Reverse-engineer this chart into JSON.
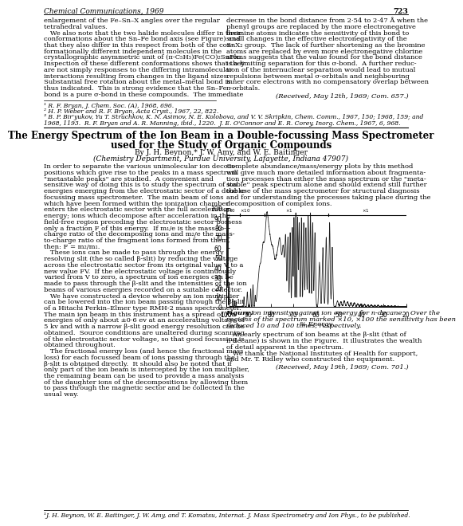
{
  "journal_header": "Chemical Communications, 1969",
  "page_number": "723",
  "prev_article_left": [
    "enlargement of the Fe–Sn–X angles over the regular",
    "tetrahedral values.",
    "   We also note that the two halide molecules differ in their",
    "conformations about the Sn–Fe bond axis (see Figure) and",
    "that they also differ in this respect from both of the con-",
    "formationally different independent molecules in the",
    "crystallographic asymmetric unit of (π-C₅H₅)Fe(CO)₂SnPh₂.",
    "Inspection of these different conformations shows that they",
    "are not simply responses to the differing intramolecular",
    "interactions resulting from changes in the ligand sizes.",
    "Substantial free rotation about the metal–metal bond is",
    "thus indicated.  This is strong evidence that the Sn–Fe",
    "bond is a pure σ-bond in these compounds.  The immediate"
  ],
  "prev_article_right": [
    "decrease in the bond distance from 2·54 to 2·47 Å when the",
    "phenyl groups are replaced by the more electronegative",
    "bromine atoms indicates the sensitivity of this bond to",
    "small changes in the effective electronegativity of the",
    "SnX₂ group.  The lack of further shortening as the bromine",
    "atoms are replaced by even more electronegative chlorine",
    "atoms suggests that the value found for the bond distance",
    "is a limiting separation for this σ-bond.  A further reduc-",
    "tion of the internuclear separation would lead to mutual",
    "repulsions between metal σ-orbitals and neighbouring",
    "inner core electrons with no compensatory overlap between",
    "π-orbitals."
  ],
  "prev_received": "(Received, May 12th, 1969; Com. 657.)",
  "footnotes_prev": [
    "¹ R. F. Bryan, J. Chem. Soc. (A), 1968, 696.",
    "² H. P. Weber and R. F. Bryan, Acta Cryst., 1967, 22, 822.",
    "³ B. P. Bir'yukov, Yu T. Struchkov, K. N. Asimov, N. E. Kolobova, and V. V. Skripkin, Chem. Comm., 1967, 150; 1968, 159; and",
    "1968, 1193.  R. F. Bryan and A. R. Manning, ibid., 1220.  J. E. O'Connor and E. R. Corey, Inorg. Chem., 1967, 6, 968."
  ],
  "title_line1": "The Energy Spectrum of the Ion Beam in a Double-focussing Mass Spectrometer",
  "title_line2": "used for the Study of Organic Compounds",
  "authors": "By J. H. Beynon,* J. W. Amy, and W. E. Baitinger",
  "affiliation": "(Chemistry Department, Purdue University, Lafayette, Indiana 47907)",
  "body_left": [
    "In order to separate the various unimolecular ion decom-",
    "positions which give rise to the peaks in a mass spectrum",
    "\"metastable peaks\" are studied.  A convenient and",
    "sensitive way of doing this is to study the spectrum of ion",
    "energies emerging from the electrostatic sector of a double-",
    "focussing mass spectrometer.  The main beam of ions",
    "which have been formed within the ionization chamber",
    "enters the electrostatic sector with the full acceleration",
    "energy; ions which decompose after acceleration in the",
    "field-free region preceding the electrostatic sector possess",
    "only a fraction F of this energy.  If m₁/e is the mass-to-",
    "charge ratio of the decomposing ions and m₂/e the mass-",
    "to-charge ratio of the fragment ions formed from them,",
    "then: F = m₂/m₁.",
    "   These ions can be made to pass through the energy",
    "resolving slit (the so called β-slit) by reducing the voltage",
    "across the electrostatic sector from its original value V to a",
    "new value FV.  If the electrostatic voltage is continuously",
    "varied from V to zero, a spectrum of ion energies can be",
    "made to pass through the β-slit and the intensities of the ion",
    "beams of various energies recorded on a suitable collector.",
    "   We have constructed a device whereby an ion multiplier",
    "can be lowered into the ion beam passing through the β-slit",
    "of a Hitachi Perkin–Elmer type RMH-2 mass spectrometer.¹",
    "The main ion beam in this instrument has a spread of ion",
    "energies of only about ±0·6 ev at an accelerating voltage of",
    "5 kv and with a narrow β-slit good energy resolution can be",
    "obtained.  Source conditions are unaltered during scanning",
    "of the electrostatic sector voltage, so that good focussing is",
    "obtained throughout.",
    "   The fractional energy loss (and hence the fractional mass",
    "loss) for each focussed beam of ions passing through the",
    "β-slit is obtained directly.  It should also be noted that if",
    "only part of the ion beam is intercepted by the ion multiplier,",
    "the remaining beam can be used to provide a mass analysis",
    "of the daughter ions of the decompositions by allowing them",
    "to pass through the magnetic sector and be collected in the",
    "usual way."
  ],
  "body_right_top": [
    "Complete abundance/mass/energy plots by this method",
    "will give much more detailed information about fragmenta-",
    "tion processes than either the mass spectrum or the \"meta-",
    "stable\" peak spectrum alone and should extend still further",
    "the use of the mass spectrometer for structural diagnosis",
    "and for understanding the processes taking place during the",
    "decomposition of complex ions."
  ],
  "body_right_bottom": [
    "   An early spectrum of ion beams at the β-slit (that of",
    "n-decane) is shown in the Figure.  It illustrates the wealth",
    "of detail apparent in the spectrum.",
    "   We thank the National Institutes of Health for support,",
    "and Mr. T. Ridley who constructed the equipment."
  ],
  "received_line": "(Received, May 19th, 1969; Com. 701.)",
  "footnote": "¹J. H. Beynon, W. E. Baitinger, J. W. Amy, and T. Komatsu, Internat. J. Mass Spectrometry and Ion Phys., to be published.",
  "xlabel": "% Energy",
  "xlim": [
    100,
    20
  ],
  "ylim": [
    0,
    100
  ],
  "xticks": [
    100,
    90,
    80,
    70,
    60,
    50,
    40,
    30,
    20
  ],
  "yticks": [
    0,
    10,
    20,
    30,
    40,
    50,
    60,
    70,
    80,
    90,
    100
  ],
  "bg_color": "#ffffff",
  "line_color": "#1a1a1a",
  "figure_caption_bold": "Figure.",
  "figure_caption_rest": "   Ion intensity against ion energy for n-decane.   Over the regions of the spectrum marked ×10, ×100 the sensitivity has been reduced 10 and 100 times, respectively."
}
